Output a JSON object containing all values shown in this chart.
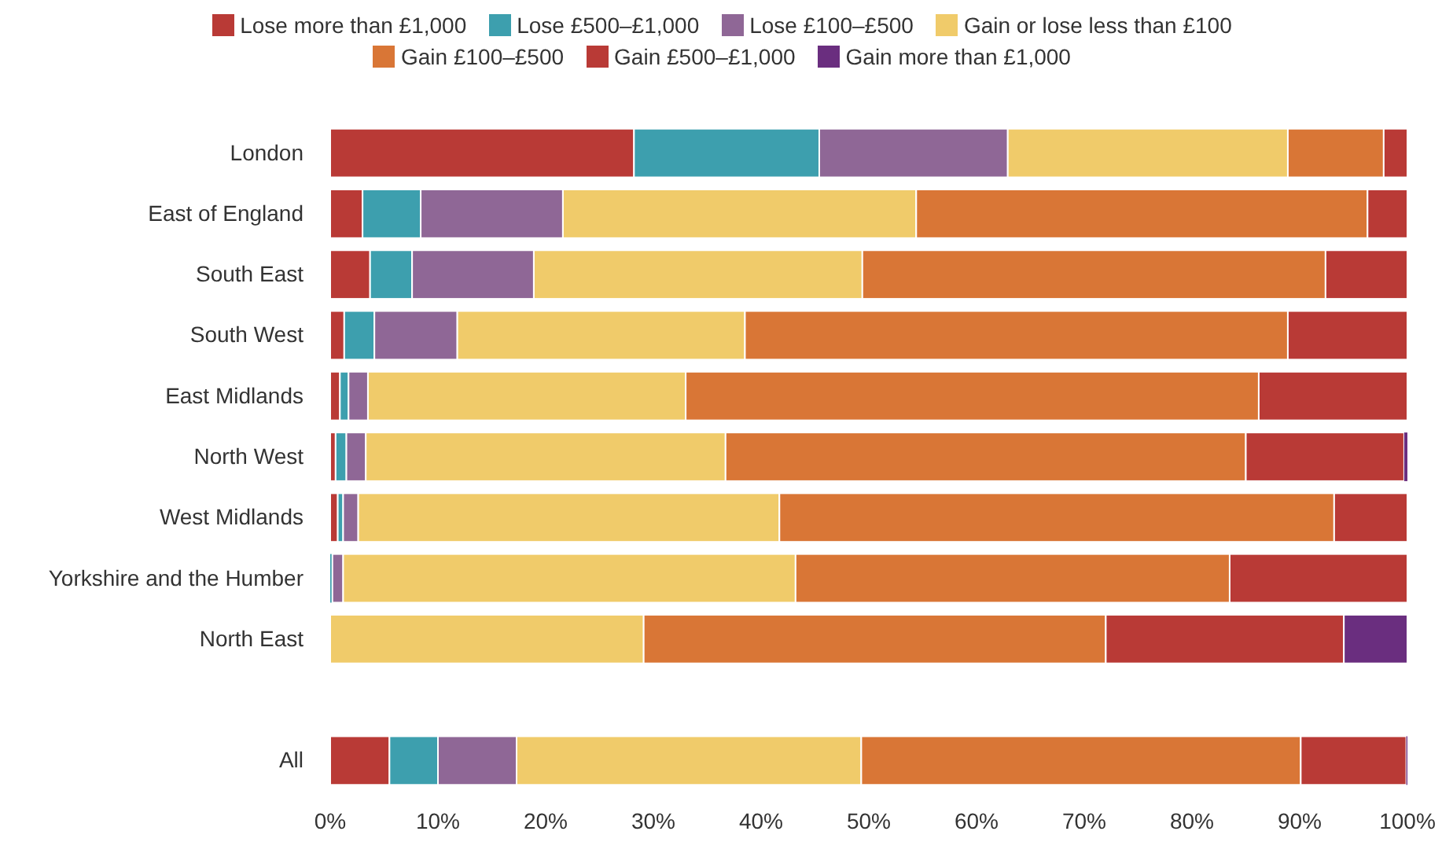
{
  "chart_data": {
    "type": "bar",
    "orientation": "horizontal",
    "stacked": true,
    "categories": [
      "London",
      "East of England",
      "South East",
      "South West",
      "East Midlands",
      "North West",
      "West Midlands",
      "Yorkshire and the Humber",
      "North East",
      null,
      "All"
    ],
    "series": [
      {
        "name": "Lose more than £1,000",
        "color": "#b93a36",
        "values": [
          28.2,
          3.0,
          3.7,
          1.3,
          0.9,
          0.5,
          0.7,
          0,
          0,
          null,
          5.5
        ]
      },
      {
        "name": "Lose £500–£1,000",
        "color": "#3d9fae",
        "values": [
          17.2,
          5.4,
          3.9,
          2.8,
          0.8,
          1.0,
          0.5,
          0.2,
          0,
          null,
          4.5
        ]
      },
      {
        "name": "Lose £100–£500",
        "color": "#8f6796",
        "values": [
          17.5,
          13.2,
          11.3,
          7.7,
          1.8,
          1.8,
          1.4,
          1.0,
          0,
          null,
          7.3
        ]
      },
      {
        "name": "Gain or lose less than £100",
        "color": "#f0cb6a",
        "values": [
          26.0,
          32.8,
          30.5,
          26.7,
          29.5,
          33.4,
          39.1,
          42.0,
          29.1,
          null,
          32.0
        ]
      },
      {
        "name": "Gain £100–£500",
        "color": "#d97636",
        "values": [
          8.9,
          41.9,
          43.0,
          50.4,
          53.2,
          48.3,
          51.5,
          40.3,
          42.9,
          null,
          40.8
        ]
      },
      {
        "name": "Gain £500–£1,000",
        "color": "#b93a36",
        "values": [
          2.2,
          3.7,
          7.6,
          11.1,
          13.8,
          14.7,
          6.8,
          16.5,
          22.1,
          null,
          9.8
        ]
      },
      {
        "name": "Gain more than £1,000",
        "color": "#6a2e7f",
        "values": [
          0,
          0,
          0,
          0,
          0,
          0.3,
          0,
          0,
          5.9,
          null,
          0.1
        ]
      }
    ],
    "xlim": [
      0,
      100
    ],
    "xticks": [
      {
        "value": 0,
        "label": "0%"
      },
      {
        "value": 10,
        "label": "10%"
      },
      {
        "value": 20,
        "label": "20%"
      },
      {
        "value": 30,
        "label": "30%"
      },
      {
        "value": 40,
        "label": "40%"
      },
      {
        "value": 50,
        "label": "50%"
      },
      {
        "value": 60,
        "label": "60%"
      },
      {
        "value": 70,
        "label": "70%"
      },
      {
        "value": 80,
        "label": "80%"
      },
      {
        "value": 90,
        "label": "90%"
      },
      {
        "value": 100,
        "label": "100%"
      }
    ],
    "grid": false,
    "legend": "top"
  }
}
